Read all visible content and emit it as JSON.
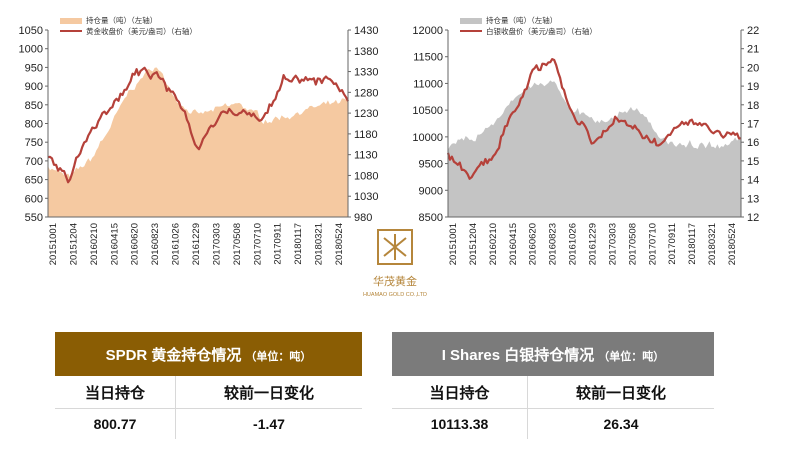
{
  "charts": {
    "gold": {
      "legend": {
        "area": "持仓量（吨）（左轴）",
        "line": "黄金收盘价（美元/盎司）（右轴）"
      },
      "left_ticks": [
        "1050",
        "1000",
        "950",
        "900",
        "850",
        "800",
        "750",
        "700",
        "650",
        "600",
        "550"
      ],
      "right_ticks": [
        "1430",
        "1380",
        "1330",
        "1280",
        "1230",
        "1180",
        "1130",
        "1080",
        "1030",
        "980"
      ],
      "dates": [
        "20151001",
        "20151204",
        "20160210",
        "20160415",
        "20160620",
        "20160823",
        "20161026",
        "20161229",
        "20170303",
        "20170508",
        "20170710",
        "20170911",
        "20180117",
        "20180321",
        "20180524"
      ]
    },
    "silver": {
      "legend": {
        "area": "持仓量（吨）（左轴）",
        "line": "白银收盘价（美元/盎司）（右轴）"
      },
      "left_ticks": [
        "12000",
        "11500",
        "11000",
        "10500",
        "10000",
        "9500",
        "9000",
        "8500"
      ],
      "right_ticks": [
        "22",
        "21",
        "20",
        "19",
        "18",
        "17",
        "16",
        "15",
        "14",
        "13",
        "12"
      ],
      "dates": [
        "20151001",
        "20151204",
        "20160210",
        "20160415",
        "20160620",
        "20160823",
        "20161026",
        "20161229",
        "20170303",
        "20170508",
        "20170710",
        "20170911",
        "20180117",
        "20180321",
        "20180524"
      ]
    }
  },
  "chart_data": [
    {
      "type": "area",
      "title": "",
      "x": [
        "20151001",
        "20151204",
        "20160210",
        "20160415",
        "20160620",
        "20160823",
        "20161026",
        "20161229",
        "20170303",
        "20170508",
        "20170710",
        "20170911",
        "20180117",
        "20180321",
        "20180524"
      ],
      "ylim_left": [
        550,
        1050
      ],
      "ylim_right": [
        980,
        1430
      ],
      "series": [
        {
          "name": "持仓量（吨）（左轴）",
          "axis": "left",
          "color": "#f5c9a1",
          "values": [
            690,
            650,
            700,
            800,
            900,
            955,
            870,
            820,
            835,
            850,
            810,
            820,
            840,
            845,
            855
          ]
        },
        {
          "name": "黄金收盘价（美元/盎司）（右轴）",
          "axis": "right",
          "color": "#b5413a",
          "values": [
            1135,
            1070,
            1200,
            1240,
            1320,
            1330,
            1265,
            1150,
            1240,
            1230,
            1215,
            1320,
            1320,
            1310,
            1255
          ]
        }
      ]
    },
    {
      "type": "area",
      "title": "",
      "x": [
        "20151001",
        "20151204",
        "20160210",
        "20160415",
        "20160620",
        "20160823",
        "20161026",
        "20161229",
        "20170303",
        "20170508",
        "20170710",
        "20170911",
        "20180117",
        "20180321",
        "20180524"
      ],
      "ylim_left": [
        8500,
        12000
      ],
      "ylim_right": [
        12,
        22
      ],
      "series": [
        {
          "name": "持仓量（吨）（左轴）",
          "axis": "left",
          "color": "#c4c4c4",
          "values": [
            9800,
            9850,
            10200,
            10600,
            10950,
            10950,
            10600,
            10300,
            10450,
            10550,
            10000,
            9850,
            9900,
            9850,
            9950
          ]
        },
        {
          "name": "白银收盘价（美元/盎司）（右轴）",
          "axis": "right",
          "color": "#b5413a",
          "values": [
            15.5,
            14.2,
            15.0,
            17.5,
            19.5,
            20.3,
            17.5,
            15.9,
            17.3,
            16.8,
            16.0,
            17.0,
            17.0,
            16.5,
            16.3
          ]
        }
      ]
    }
  ],
  "logo": {
    "name": "华茂黄金",
    "sub": "HUAMAO GOLD CO.,LTD"
  },
  "tables": {
    "spdr": {
      "title": "SPDR 黄金持仓情况",
      "unit": "（单位：吨）",
      "col1": "当日持仓",
      "col2": "较前一日变化",
      "val1": "800.77",
      "val2": "-1.47",
      "color": "#8a5d04"
    },
    "ishares": {
      "title": "I Shares 白银持仓情况",
      "unit": "（单位：吨）",
      "col1": "当日持仓",
      "col2": "较前一日变化",
      "val1": "10113.38",
      "val2": "26.34",
      "color": "#7b7b7b"
    }
  }
}
